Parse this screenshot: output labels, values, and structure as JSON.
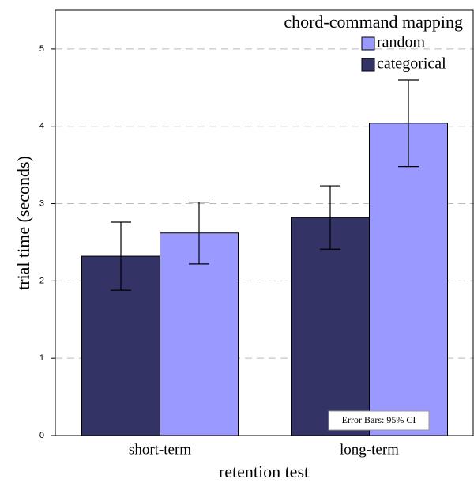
{
  "chart_data": {
    "type": "bar",
    "x_label": "retention test",
    "y_label": "trial time (seconds)",
    "legend_title": "chord-command mapping",
    "legend_position": "upper right",
    "annotation": "Error Bars: 95% CI",
    "categories": [
      "short-term",
      "long-term"
    ],
    "series": [
      {
        "name": "categorical",
        "color": "#333366",
        "values": [
          2.32,
          2.82
        ],
        "errors": [
          0.44,
          0.41
        ]
      },
      {
        "name": "random",
        "color": "#9999ff",
        "values": [
          2.62,
          4.04
        ],
        "errors": [
          0.4,
          0.56
        ]
      }
    ],
    "ylim": [
      0,
      5.5
    ],
    "yticks": [
      0,
      1,
      2,
      3,
      4,
      5
    ],
    "grid": true
  }
}
